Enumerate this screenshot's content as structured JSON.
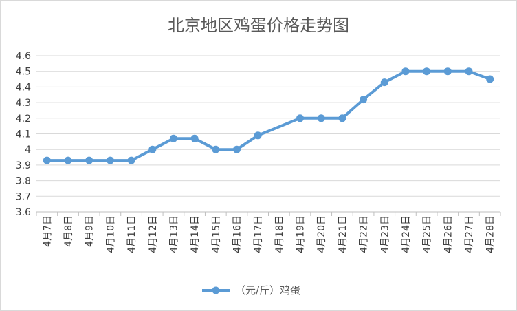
{
  "chart_data": {
    "type": "line",
    "title": "北京地区鸡蛋价格走势图",
    "xlabel": "",
    "ylabel": "",
    "categories": [
      "4月7日",
      "4月8日",
      "4月9日",
      "4月10日",
      "4月11日",
      "4月12日",
      "4月13日",
      "4月14日",
      "4月15日",
      "4月16日",
      "4月17日",
      "4月18日",
      "4月19日",
      "4月20日",
      "4月21日",
      "4月22日",
      "4月23日",
      "4月24日",
      "4月25日",
      "4月26日",
      "4月27日",
      "4月28日"
    ],
    "series": [
      {
        "name": "（元/斤）鸡蛋",
        "values": [
          3.93,
          3.93,
          3.93,
          3.93,
          3.93,
          4.0,
          4.07,
          4.07,
          4.0,
          4.0,
          4.09,
          null,
          4.2,
          4.2,
          4.2,
          4.32,
          4.43,
          4.5,
          4.5,
          4.5,
          4.5,
          4.45
        ],
        "color": "#5B9BD5"
      }
    ],
    "ylim": [
      3.6,
      4.6
    ],
    "yticks": [
      "3.6",
      "3.7",
      "3.8",
      "3.9",
      "4",
      "4.1",
      "4.2",
      "4.3",
      "4.4",
      "4.5",
      "4.6"
    ],
    "grid": true,
    "legend": "bottom",
    "connect_gaps": true
  }
}
